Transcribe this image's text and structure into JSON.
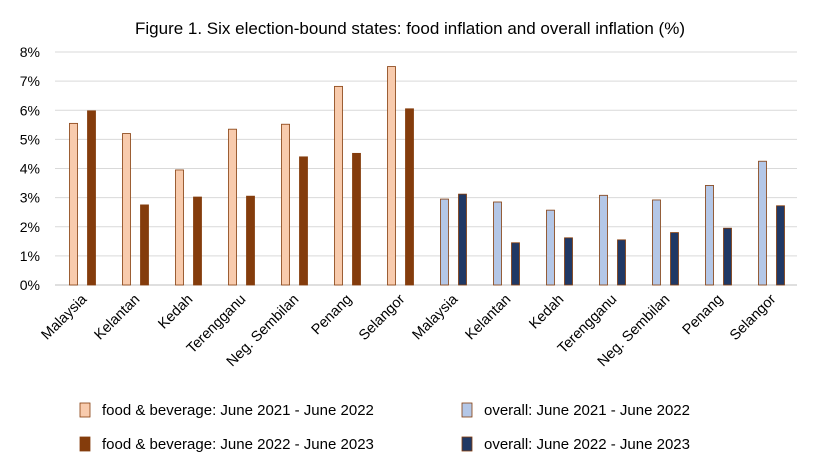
{
  "chart_data": {
    "type": "bar",
    "title": "Figure 1. Six election-bound states: food inflation and overall inflation (%)",
    "xlabel": "",
    "ylabel": "",
    "ylim": [
      0,
      8
    ],
    "yticks": [
      "0%",
      "1%",
      "2%",
      "3%",
      "4%",
      "5%",
      "6%",
      "7%",
      "8%"
    ],
    "grid": true,
    "legend_position": "bottom",
    "groups": [
      {
        "categories": [
          "Malaysia",
          "Kelantan",
          "Kedah",
          "Terengganu",
          "Neg. Sembilan",
          "Penang",
          "Selangor"
        ],
        "series": [
          {
            "name": "food & beverage:  June 2021 - June 2022",
            "color": "#f8cbad",
            "values": [
              5.55,
              5.2,
              3.95,
              5.35,
              5.52,
              6.82,
              7.5
            ]
          },
          {
            "name": "food & beverage:  June 2022 - June 2023",
            "color": "#843c0c",
            "values": [
              5.98,
              2.75,
              3.02,
              3.05,
              4.4,
              4.52,
              6.05
            ]
          }
        ]
      },
      {
        "categories": [
          "Malaysia",
          "Kelantan",
          "Kedah",
          "Terengganu",
          "Neg. Sembilan",
          "Penang",
          "Selangor"
        ],
        "series": [
          {
            "name": "overall: June 2021 - June 2022",
            "color": "#b4c7e7",
            "values": [
              2.95,
              2.85,
              2.57,
              3.08,
              2.92,
              3.42,
              4.25
            ]
          },
          {
            "name": "overall: June 2022 - June 2023",
            "color": "#203864",
            "values": [
              3.12,
              1.45,
              1.62,
              1.55,
              1.8,
              1.95,
              2.72
            ]
          }
        ]
      }
    ]
  }
}
